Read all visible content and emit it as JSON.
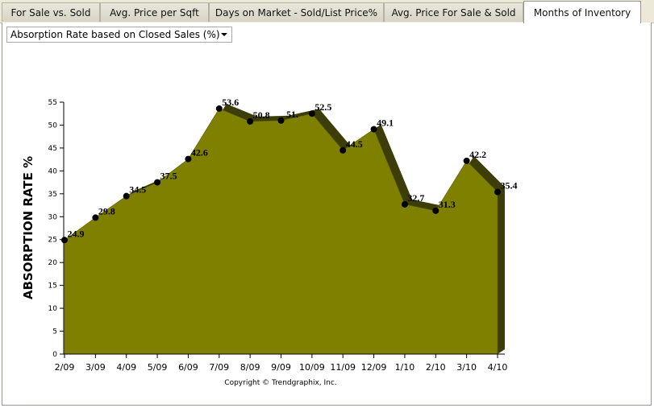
{
  "tabs": [
    {
      "label": "For Sale vs. Sold"
    },
    {
      "label": "Avg. Price per Sqft"
    },
    {
      "label": "Days on Market - Sold/List Price%"
    },
    {
      "label": "Avg. Price For Sale & Sold"
    },
    {
      "label": "Months of Inventory"
    }
  ],
  "active_tab": 4,
  "dropdown": {
    "selected": "Absorption Rate based on Closed Sales (%)"
  },
  "credit": "Copyright © Trendgraphix, Inc.",
  "colors": {
    "fill": "#808000",
    "shadow": "#3d3d0a",
    "marker": "#000000"
  },
  "chart_data": {
    "type": "area",
    "ylabel": "ABSORPTION RATE %",
    "xlabel": "",
    "ylim": [
      0,
      55
    ],
    "yticks": [
      0,
      5,
      10,
      15,
      20,
      25,
      30,
      35,
      40,
      45,
      50,
      55
    ],
    "categories": [
      "2/09",
      "3/09",
      "4/09",
      "5/09",
      "6/09",
      "7/09",
      "8/09",
      "9/09",
      "10/09",
      "11/09",
      "12/09",
      "1/10",
      "2/10",
      "3/10",
      "4/10"
    ],
    "values": [
      24.9,
      29.8,
      34.5,
      37.5,
      42.6,
      53.6,
      50.8,
      51.0,
      52.5,
      44.5,
      49.1,
      32.7,
      31.3,
      42.2,
      35.4
    ],
    "value_labels": [
      "24.9",
      "29.8",
      "34.5",
      "37.5",
      "42.6",
      "53.6",
      "50.8",
      "51.",
      "52.5",
      "44.5",
      "49.1",
      "32.7",
      "31.3",
      "42.2",
      "35.4"
    ],
    "grid": false
  }
}
